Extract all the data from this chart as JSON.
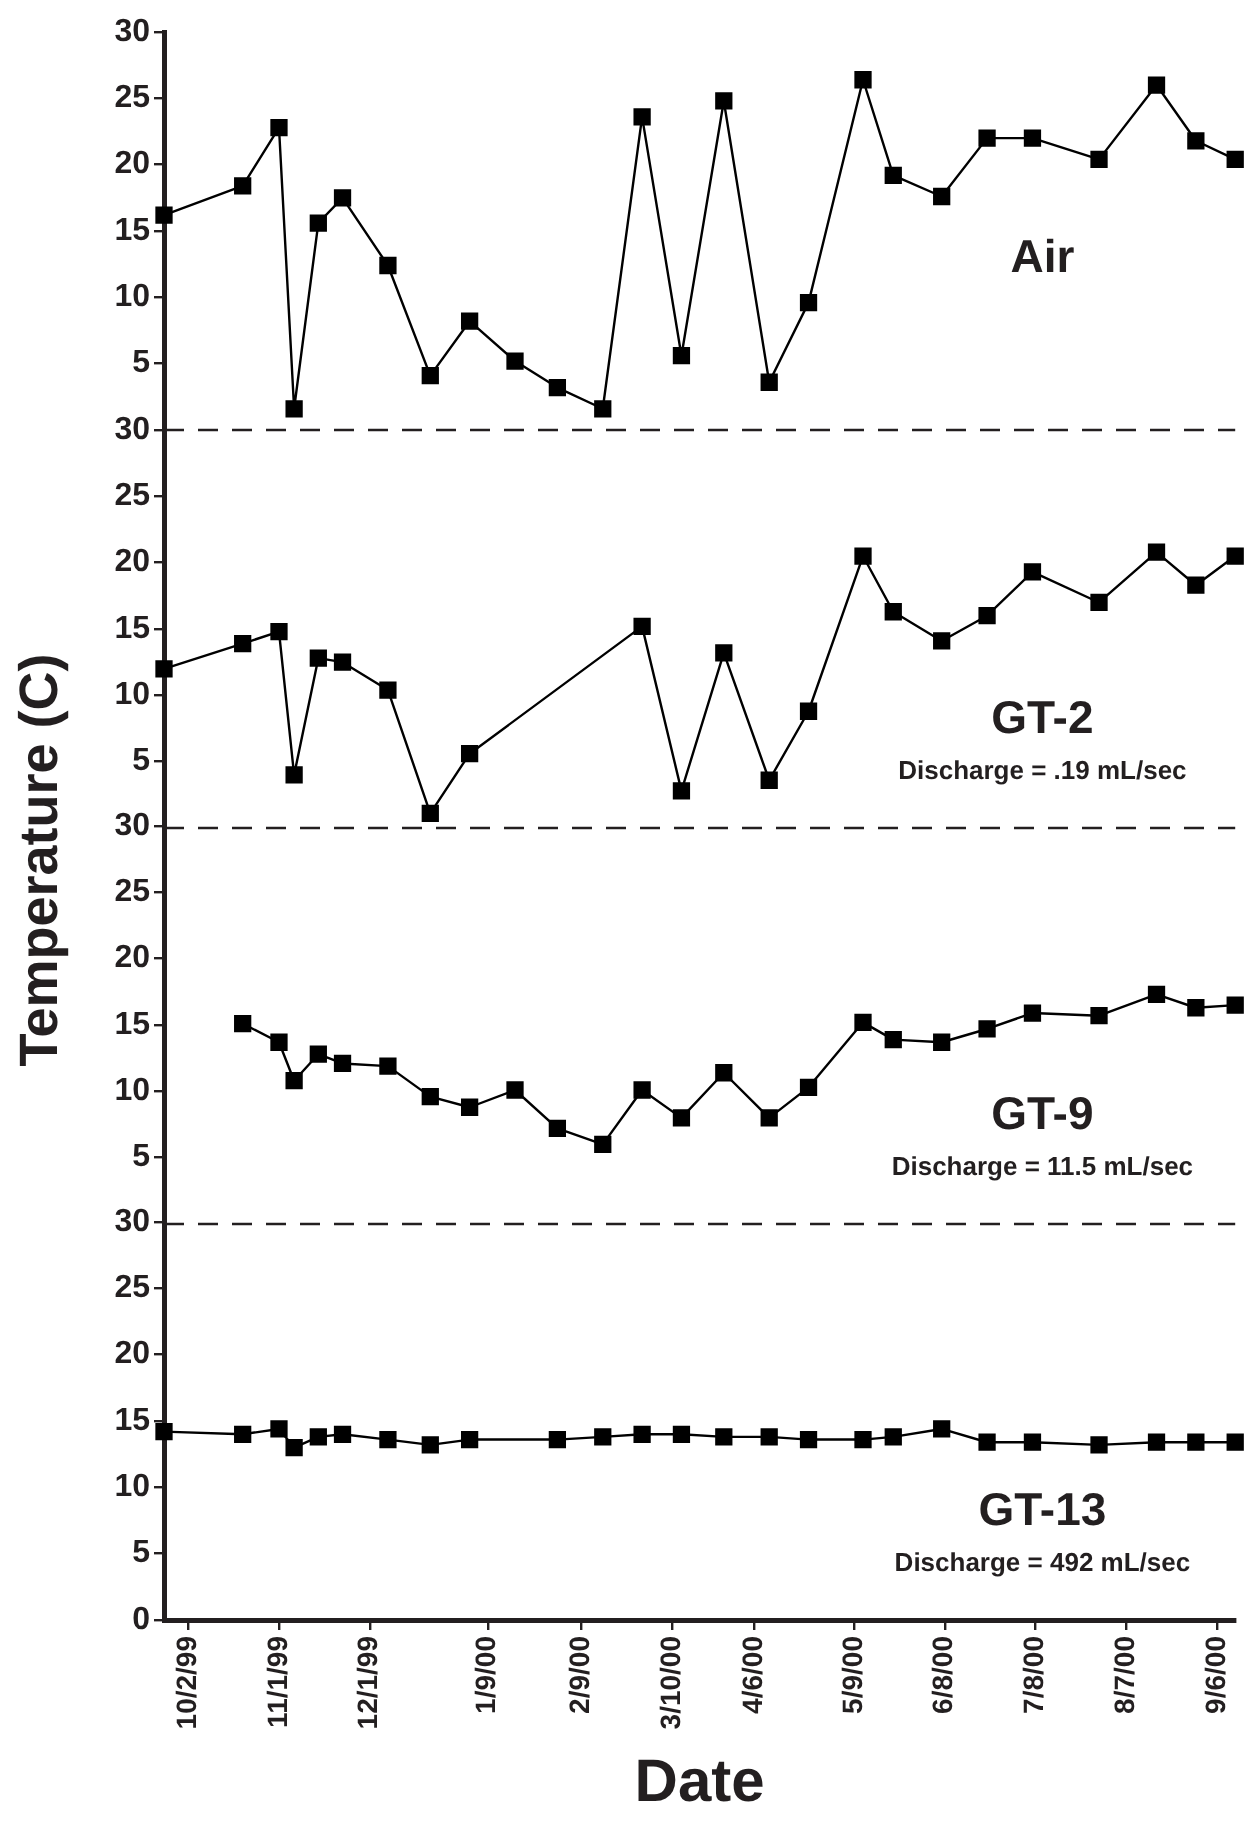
{
  "chart_data": [
    {
      "type": "line",
      "title": "Air",
      "ylabel": "Temperature (C)",
      "x": [
        "1999-09-24",
        "1999-10-20",
        "1999-11-01",
        "1999-11-06",
        "1999-11-14",
        "1999-11-22",
        "1999-12-07",
        "1999-12-21",
        "2000-01-03",
        "2000-01-18",
        "2000-02-01",
        "2000-02-16",
        "2000-02-29",
        "2000-03-13",
        "2000-03-27",
        "2000-04-11",
        "2000-04-24",
        "2000-05-12",
        "2000-05-22",
        "2000-06-07",
        "2000-06-22",
        "2000-07-07",
        "2000-07-29",
        "2000-08-17",
        "2000-08-30",
        "2000-09-12"
      ],
      "series": [
        {
          "color": "#000000",
          "values": [
            16.2,
            18.4,
            22.8,
            1.6,
            15.6,
            17.5,
            12.4,
            4.1,
            8.2,
            5.2,
            3.2,
            1.6,
            23.6,
            5.6,
            24.8,
            3.6,
            9.6,
            26.4,
            19.2,
            17.6,
            22.0,
            22.0,
            20.4,
            26.0,
            21.8,
            20.4
          ]
        }
      ],
      "xlim": [
        "1999-09-24",
        "2000-09-12"
      ],
      "ylim": [
        0,
        30
      ],
      "yticks": [
        5,
        10,
        15,
        20,
        25,
        30
      ],
      "tick_labels": "y",
      "marker": "square",
      "legend": false,
      "grid": false,
      "ref_lines": [
        {
          "axis": "y",
          "value": 0,
          "line_style": "dashed"
        }
      ]
    },
    {
      "type": "line",
      "title": "GT-2",
      "subtitle": "Discharge = .19 mL/sec",
      "x": [
        "1999-09-24",
        "1999-10-20",
        "1999-11-01",
        "1999-11-06",
        "1999-11-14",
        "1999-11-22",
        "1999-12-07",
        "1999-12-21",
        "2000-01-03",
        "2000-01-18",
        "2000-02-01",
        "2000-02-16",
        "2000-02-29",
        "2000-03-13",
        "2000-03-27",
        "2000-04-11",
        "2000-04-24",
        "2000-05-12",
        "2000-05-22",
        "2000-06-07",
        "2000-06-22",
        "2000-07-07",
        "2000-07-29",
        "2000-08-17",
        "2000-08-30",
        "2000-09-12"
      ],
      "series": [
        {
          "color": "#000000",
          "values": [
            12.0,
            13.9,
            14.8,
            4.0,
            12.8,
            12.5,
            10.4,
            1.1,
            5.6,
            null,
            null,
            null,
            15.2,
            2.8,
            13.2,
            3.6,
            8.8,
            20.5,
            16.3,
            14.1,
            16.0,
            19.3,
            17.0,
            20.8,
            18.3,
            20.5
          ]
        }
      ],
      "xlim": [
        "1999-09-24",
        "2000-09-12"
      ],
      "ylim": [
        0,
        30
      ],
      "yticks": [
        5,
        10,
        15,
        20,
        25,
        30
      ],
      "tick_labels": "y",
      "marker": "square",
      "legend": false,
      "grid": false,
      "ref_lines": [
        {
          "axis": "y",
          "value": 0,
          "line_style": "dashed"
        }
      ]
    },
    {
      "type": "line",
      "title": "GT-9",
      "subtitle": "Discharge = 11.5 mL/sec",
      "series": [
        {
          "color": "#000000",
          "x": [
            "1999-10-20",
            "1999-11-01",
            "1999-11-06",
            "1999-11-14",
            "1999-11-22",
            "1999-12-07",
            "1999-12-21",
            "2000-01-03",
            "2000-01-18",
            "2000-02-01",
            "2000-02-16",
            "2000-02-29",
            "2000-03-13",
            "2000-03-27",
            "2000-04-11",
            "2000-04-24",
            "2000-05-12",
            "2000-05-22",
            "2000-06-07",
            "2000-06-22",
            "2000-07-07",
            "2000-07-29",
            "2000-08-17",
            "2000-08-30",
            "2000-09-12"
          ],
          "values": [
            15.1,
            13.7,
            10.8,
            12.8,
            12.1,
            11.9,
            9.6,
            8.8,
            10.1,
            7.2,
            6.0,
            10.1,
            8.0,
            11.4,
            8.0,
            10.3,
            15.2,
            13.9,
            13.7,
            14.7,
            15.9,
            15.7,
            17.3,
            16.3,
            16.5
          ]
        }
      ],
      "xlim": [
        "1999-09-24",
        "2000-09-12"
      ],
      "ylim": [
        0,
        30
      ],
      "yticks": [
        5,
        10,
        15,
        20,
        25,
        30
      ],
      "tick_labels": "y",
      "marker": "square",
      "legend": false,
      "grid": false,
      "ref_lines": [
        {
          "axis": "y",
          "value": 0,
          "line_style": "dashed"
        }
      ]
    },
    {
      "type": "line",
      "title": "GT-13",
      "subtitle": "Discharge = 492 mL/sec",
      "xlabel": "Date",
      "x": [
        "1999-09-24",
        "1999-10-20",
        "1999-11-01",
        "1999-11-06",
        "1999-11-14",
        "1999-11-22",
        "1999-12-07",
        "1999-12-21",
        "2000-01-03",
        "2000-01-18",
        "2000-02-01",
        "2000-02-16",
        "2000-02-29",
        "2000-03-13",
        "2000-03-27",
        "2000-04-11",
        "2000-04-24",
        "2000-05-12",
        "2000-05-22",
        "2000-06-07",
        "2000-06-22",
        "2000-07-07",
        "2000-07-29",
        "2000-08-17",
        "2000-08-30",
        "2000-09-12"
      ],
      "series": [
        {
          "color": "#000000",
          "values": [
            14.2,
            14.0,
            14.4,
            13.0,
            13.8,
            14.0,
            13.6,
            13.2,
            13.6,
            null,
            13.6,
            13.8,
            14.0,
            14.0,
            13.8,
            13.8,
            13.6,
            13.6,
            13.8,
            14.4,
            13.4,
            13.4,
            13.2,
            13.4,
            13.4,
            13.4
          ]
        }
      ],
      "xlim": [
        "1999-09-24",
        "2000-09-12"
      ],
      "xticks": [
        {
          "value": "1999-10-02",
          "label": "10/2/99"
        },
        {
          "value": "1999-11-01",
          "label": "11/1/99"
        },
        {
          "value": "1999-12-01",
          "label": "12/1/99"
        },
        {
          "value": "2000-01-09",
          "label": "1/9/00"
        },
        {
          "value": "2000-02-09",
          "label": "2/9/00"
        },
        {
          "value": "2000-03-10",
          "label": "3/10/00"
        },
        {
          "value": "2000-04-06",
          "label": "4/6/00"
        },
        {
          "value": "2000-05-09",
          "label": "5/9/00"
        },
        {
          "value": "2000-06-08",
          "label": "6/8/00"
        },
        {
          "value": "2000-07-08",
          "label": "7/8/00"
        },
        {
          "value": "2000-08-07",
          "label": "8/7/00"
        },
        {
          "value": "2000-09-06",
          "label": "9/6/00"
        }
      ],
      "ylim": [
        0,
        30
      ],
      "yticks": [
        0,
        5,
        10,
        15,
        20,
        25,
        30
      ],
      "marker": "square",
      "legend": false,
      "grid": false
    }
  ]
}
